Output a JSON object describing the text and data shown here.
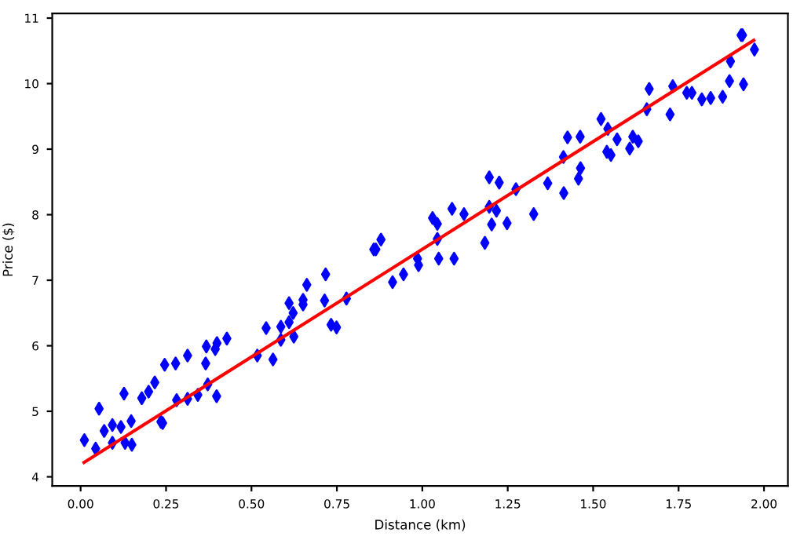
{
  "chart_data": {
    "type": "scatter",
    "xlabel": "Distance (km)",
    "ylabel": "Price ($)",
    "xlim": [
      -0.083,
      2.07
    ],
    "ylim": [
      3.86,
      11.07
    ],
    "xticks": [
      {
        "value": 0,
        "label": "0.00"
      },
      {
        "value": 0.25,
        "label": "0.25"
      },
      {
        "value": 0.5,
        "label": "0.50"
      },
      {
        "value": 0.75,
        "label": "0.75"
      },
      {
        "value": 1,
        "label": "1.00"
      },
      {
        "value": 1.25,
        "label": "1.25"
      },
      {
        "value": 1.5,
        "label": "1.50"
      },
      {
        "value": 1.75,
        "label": "1.75"
      },
      {
        "value": 2,
        "label": "2.00"
      }
    ],
    "yticks": [
      4,
      5,
      6,
      7,
      8,
      9,
      10,
      11
    ],
    "grid": false,
    "legend": false,
    "series": [
      {
        "color": "#0000ff",
        "marker": "diamond",
        "x": [
          0.054,
          0.069,
          0.011,
          0.044,
          0.093,
          0.093,
          0.118,
          0.127,
          0.13,
          0.148,
          0.15,
          0.179,
          0.199,
          0.217,
          0.235,
          0.24,
          0.246,
          0.278,
          0.281,
          0.313,
          0.313,
          0.343,
          0.366,
          0.368,
          0.372,
          0.394,
          0.399,
          0.398,
          0.428,
          0.517,
          0.543,
          0.563,
          0.586,
          0.586,
          0.61,
          0.61,
          0.622,
          0.624,
          0.651,
          0.651,
          0.662,
          0.714,
          0.717,
          0.733,
          0.749,
          0.778,
          0.858,
          0.864,
          0.879,
          0.913,
          0.945,
          0.986,
          0.989,
          1.03,
          1.044,
          1.044,
          1.048,
          1.093,
          1.087,
          1.122,
          1.183,
          1.196,
          1.196,
          1.203,
          1.217,
          1.225,
          1.248,
          1.274,
          1.326,
          1.367,
          1.414,
          1.413,
          1.425,
          1.462,
          1.463,
          1.457,
          1.523,
          1.543,
          1.54,
          1.552,
          1.57,
          1.607,
          1.616,
          1.632,
          1.657,
          1.664,
          1.725,
          1.733,
          1.774,
          1.789,
          1.818,
          1.844,
          1.879,
          1.899,
          1.902,
          1.94,
          1.933,
          1.937,
          1.972
        ],
        "values": [
          5.04,
          4.7,
          4.56,
          4.43,
          4.79,
          4.52,
          4.76,
          5.27,
          4.52,
          4.85,
          4.49,
          5.2,
          5.3,
          5.44,
          4.84,
          4.82,
          5.71,
          5.73,
          5.17,
          5.19,
          5.85,
          5.25,
          5.73,
          5.99,
          5.41,
          5.95,
          6.04,
          5.23,
          6.11,
          5.85,
          6.27,
          5.79,
          6.29,
          6.09,
          6.36,
          6.65,
          6.5,
          6.14,
          6.7,
          6.63,
          6.93,
          6.69,
          7.09,
          6.32,
          6.28,
          6.72,
          7.47,
          7.47,
          7.62,
          6.97,
          7.09,
          7.33,
          7.23,
          7.95,
          7.86,
          7.63,
          7.33,
          7.33,
          8.09,
          8.01,
          7.57,
          8.57,
          8.12,
          7.85,
          8.06,
          8.49,
          7.87,
          8.39,
          8.01,
          8.48,
          8.33,
          8.88,
          9.18,
          9.19,
          8.71,
          8.55,
          9.46,
          9.31,
          8.96,
          8.91,
          9.15,
          9.01,
          9.19,
          9.12,
          9.61,
          9.92,
          9.53,
          9.96,
          9.86,
          9.86,
          9.76,
          9.78,
          9.8,
          10.04,
          10.34,
          9.99,
          10.74,
          10.74,
          10.52
        ]
      },
      {
        "type": "line",
        "color": "#ff0000",
        "marker": "none",
        "line_style": "solid",
        "x": [
          0.01,
          1.97
        ],
        "values": [
          4.22,
          10.66
        ]
      }
    ]
  }
}
